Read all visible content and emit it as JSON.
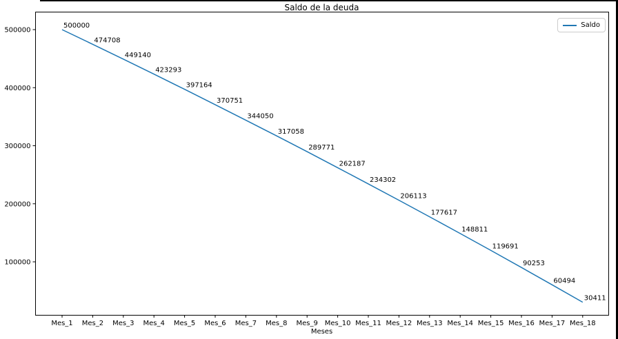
{
  "figure": {
    "title": "Saldo de la deuda",
    "xlabel": "Meses",
    "legend": {
      "label": "Saldo"
    },
    "line_color": "#1f77b4"
  },
  "chart_data": {
    "type": "line",
    "title": "Saldo de la deuda",
    "xlabel": "Meses",
    "ylabel": "",
    "categories": [
      "Mes_1",
      "Mes_2",
      "Mes_3",
      "Mes_4",
      "Mes_5",
      "Mes_6",
      "Mes_7",
      "Mes_8",
      "Mes_9",
      "Mes_10",
      "Mes_11",
      "Mes_12",
      "Mes_13",
      "Mes_14",
      "Mes_15",
      "Mes_16",
      "Mes_17",
      "Mes_18"
    ],
    "series": [
      {
        "name": "Saldo",
        "color": "#1f77b4",
        "values": [
          500000,
          474708,
          449140,
          423293,
          397164,
          370751,
          344050,
          317058,
          289771,
          262187,
          234302,
          206113,
          177617,
          148811,
          119691,
          90253,
          60494,
          30411
        ]
      }
    ],
    "data_labels_shown": true,
    "yticks": [
      100000,
      200000,
      300000,
      400000,
      500000
    ],
    "ylim": [
      7000,
      523500
    ],
    "grid": false,
    "legend_position": "upper right"
  }
}
